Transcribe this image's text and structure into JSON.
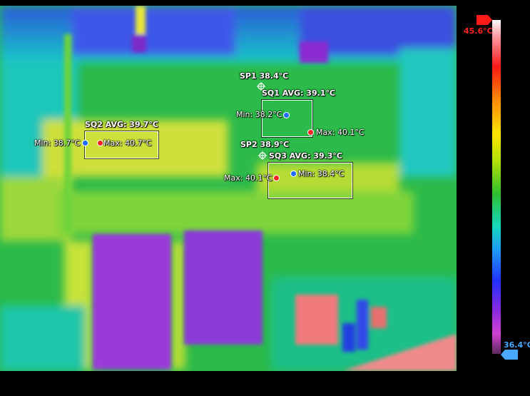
{
  "measurements": {
    "sp1": {
      "label": "SP1 38.4°C"
    },
    "sp2": {
      "label": "SP2 38.9°C"
    },
    "sq1": {
      "avg": "SQ1 AVG: 39.1°C",
      "min": "Min: 38.2°C",
      "max": "Max: 40.1°C"
    },
    "sq2": {
      "avg": "SQ2 AVG: 39.7°C",
      "min": "Min: 38.7°C",
      "max": "Max: 40.7°C"
    },
    "sq3": {
      "avg": "SQ3 AVG: 39.3°C",
      "min": "Min: 38.4°C",
      "max": "Max: 40.1°C"
    }
  },
  "scale": {
    "max_label": "45.6°C",
    "min_label": "36.4°C",
    "max_color": "#ff2020",
    "min_color": "#4aa8ff"
  }
}
